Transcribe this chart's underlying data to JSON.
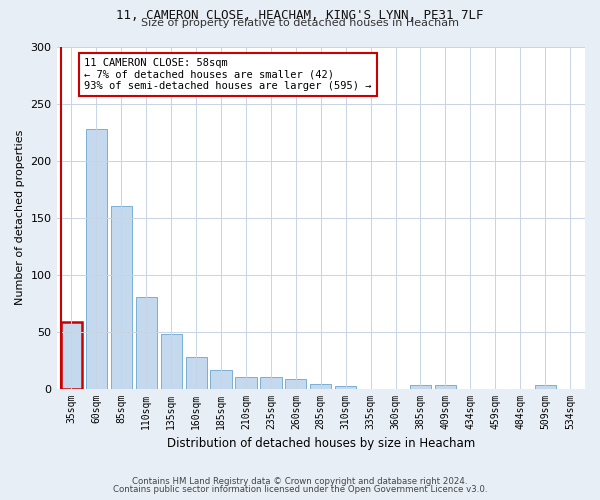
{
  "title1": "11, CAMERON CLOSE, HEACHAM, KING'S LYNN, PE31 7LF",
  "title2": "Size of property relative to detached houses in Heacham",
  "xlabel": "Distribution of detached houses by size in Heacham",
  "ylabel": "Number of detached properties",
  "categories": [
    "35sqm",
    "60sqm",
    "85sqm",
    "110sqm",
    "135sqm",
    "160sqm",
    "185sqm",
    "210sqm",
    "235sqm",
    "260sqm",
    "285sqm",
    "310sqm",
    "335sqm",
    "360sqm",
    "385sqm",
    "409sqm",
    "434sqm",
    "459sqm",
    "484sqm",
    "509sqm",
    "534sqm"
  ],
  "values": [
    58,
    228,
    160,
    80,
    48,
    28,
    16,
    10,
    10,
    8,
    4,
    2,
    0,
    0,
    3,
    3,
    0,
    0,
    0,
    3,
    0
  ],
  "bar_color": "#c5d9ee",
  "bar_edge_color": "#7aafd4",
  "highlight_bar_index": 0,
  "highlight_color": "#cc0000",
  "annotation_text": "11 CAMERON CLOSE: 58sqm\n← 7% of detached houses are smaller (42)\n93% of semi-detached houses are larger (595) →",
  "annotation_box_color": "white",
  "annotation_box_edge_color": "#cc0000",
  "ylim": [
    0,
    300
  ],
  "yticks": [
    0,
    50,
    100,
    150,
    200,
    250,
    300
  ],
  "footer1": "Contains HM Land Registry data © Crown copyright and database right 2024.",
  "footer2": "Contains public sector information licensed under the Open Government Licence v3.0.",
  "bg_color": "#e8eef6",
  "plot_bg_color": "#ffffff",
  "grid_color": "#c8d4e4"
}
